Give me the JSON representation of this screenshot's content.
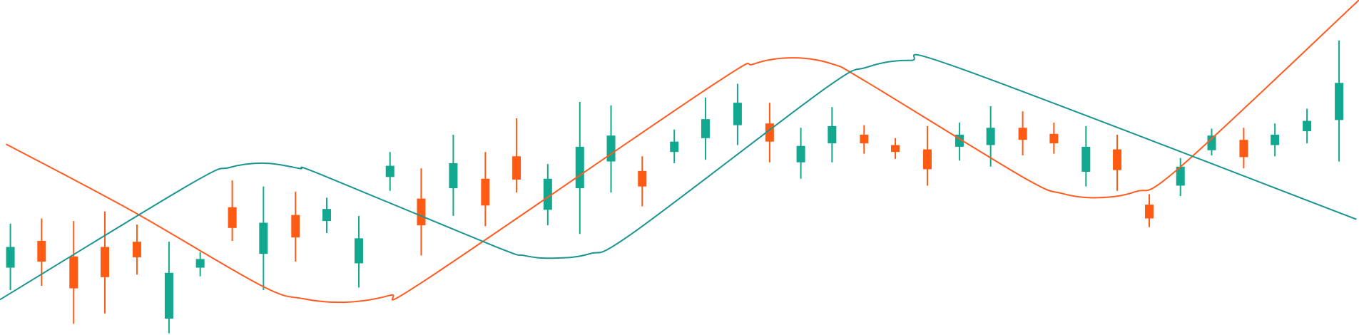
{
  "chart_data": {
    "type": "candlestick",
    "xlim": [
      0,
      1568
    ],
    "ylim": [
      0,
      388
    ],
    "up_color": "#12a890",
    "down_color": "#ff5a14",
    "x": [
      12,
      48,
      85,
      121,
      158,
      195,
      231,
      268,
      304,
      341,
      377,
      414,
      450,
      486,
      523,
      560,
      596,
      632,
      669,
      705,
      741,
      778,
      814,
      851,
      888,
      924,
      960,
      997,
      1033,
      1070,
      1107,
      1143,
      1180,
      1216,
      1253,
      1289,
      1326,
      1362,
      1398,
      1435,
      1471,
      1508,
      1545
    ],
    "open": [
      78,
      109,
      91,
      102,
      108,
      19,
      78,
      148,
      94,
      139,
      132,
      83,
      183,
      158,
      170,
      181,
      207,
      145,
      170,
      201,
      190,
      212,
      228,
      243,
      245,
      200,
      222,
      232,
      220,
      215,
      218,
      220,
      240,
      233,
      189,
      215,
      151,
      173,
      214,
      226,
      220,
      236,
      249
    ],
    "high": [
      129,
      135,
      132,
      143,
      128,
      108,
      96,
      179,
      172,
      166,
      159,
      138,
      212,
      193,
      232,
      212,
      251,
      198,
      270,
      266,
      207,
      238,
      275,
      291,
      269,
      240,
      264,
      243,
      228,
      242,
      246,
      265,
      259,
      246,
      242,
      232,
      163,
      205,
      239,
      240,
      245,
      262,
      341
    ],
    "low": [
      52,
      57,
      13,
      25,
      70,
      2,
      68,
      109,
      52,
      85,
      118,
      55,
      167,
      92,
      138,
      126,
      165,
      127,
      117,
      165,
      149,
      199,
      203,
      220,
      200,
      181,
      200,
      210,
      204,
      173,
      202,
      195,
      208,
      210,
      172,
      167,
      125,
      161,
      208,
      193,
      207,
      222,
      201
    ],
    "close": [
      102,
      85,
      54,
      67,
      90,
      72,
      88,
      124,
      130,
      113,
      146,
      112,
      196,
      127,
      199,
      150,
      180,
      181,
      218,
      231,
      172,
      224,
      250,
      269,
      224,
      219,
      242,
      222,
      212,
      192,
      232,
      240,
      226,
      222,
      218,
      191,
      135,
      195,
      231,
      206,
      232,
      248,
      292
    ],
    "series": [
      {
        "color": "#ff5a1f",
        "x": [
          7,
          150,
          300,
          350,
          400,
          450,
          490,
          820,
          870,
          915,
          960,
          1000,
          1180,
          1225,
          1265,
          1310,
          1360,
          1568
        ],
        "values": [
          221,
          145,
          58,
          42,
          38,
          46,
          63,
          288,
          314,
          321,
          314,
          293,
          183,
          164,
          159,
          166,
          193,
          388
        ]
      },
      {
        "color": "#1a9490",
        "x": [
          0,
          220,
          265,
          305,
          345,
          370,
          570,
          605,
          637,
          680,
          730,
          950,
          1000,
          1050,
          1110,
          1565
        ],
        "values": [
          41,
          175,
          194,
          199,
          193,
          186,
          103,
          92,
          89,
          94,
          118,
          284,
          310,
          318,
          308,
          134
        ]
      }
    ]
  }
}
